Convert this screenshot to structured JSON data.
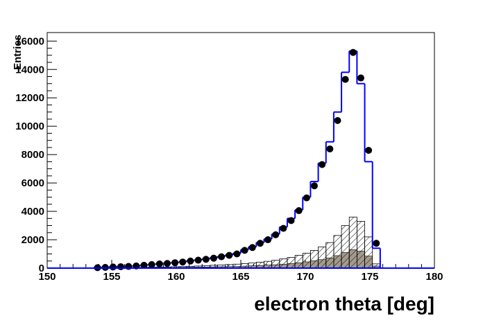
{
  "chart_data": {
    "type": "histogram",
    "x_label": "electron theta [deg]",
    "y_label": "Entries",
    "bins": [
      153.6,
      154.2,
      154.8,
      155.4,
      156.0,
      156.6,
      157.2,
      157.8,
      158.4,
      159.0,
      159.6,
      160.2,
      160.8,
      161.4,
      162.0,
      162.6,
      163.2,
      163.8,
      164.4,
      165.0,
      165.6,
      166.2,
      166.8,
      167.4,
      168.0,
      168.6,
      169.2,
      169.8,
      170.4,
      171.0,
      171.6,
      172.2,
      172.8,
      173.4,
      174.0,
      174.6,
      175.2,
      175.8
    ],
    "series": [
      {
        "style": "filled",
        "color": "#a39a8c",
        "values": [
          0,
          0,
          0,
          10,
          10,
          20,
          20,
          30,
          30,
          40,
          40,
          50,
          60,
          70,
          80,
          90,
          100,
          110,
          120,
          140,
          160,
          180,
          210,
          240,
          280,
          330,
          380,
          440,
          520,
          600,
          720,
          880,
          1100,
          1300,
          1200,
          850,
          150
        ]
      },
      {
        "style": "hatched",
        "color": "#000000",
        "values": [
          0,
          0,
          10,
          20,
          30,
          40,
          50,
          60,
          70,
          80,
          100,
          110,
          130,
          150,
          170,
          200,
          220,
          250,
          280,
          320,
          360,
          420,
          480,
          550,
          650,
          750,
          900,
          1050,
          1250,
          1500,
          1800,
          2300,
          3000,
          3600,
          3300,
          2200,
          300
        ]
      },
      {
        "style": "step",
        "color": "#0000ff",
        "values": [
          40,
          60,
          90,
          110,
          130,
          160,
          210,
          260,
          310,
          350,
          400,
          450,
          520,
          580,
          650,
          730,
          830,
          930,
          1050,
          1300,
          1500,
          1800,
          2050,
          2400,
          2900,
          3500,
          4100,
          5000,
          6100,
          7400,
          8900,
          11000,
          13800,
          15300,
          13000,
          7500,
          1400
        ]
      },
      {
        "style": "points",
        "color": "#000000",
        "values": [
          30,
          50,
          80,
          100,
          120,
          150,
          200,
          250,
          300,
          330,
          380,
          430,
          500,
          560,
          620,
          700,
          800,
          900,
          1000,
          1250,
          1450,
          1750,
          2000,
          2350,
          2800,
          3350,
          4050,
          4950,
          5800,
          7300,
          8400,
          10400,
          13300,
          15200,
          13400,
          8300,
          1750
        ]
      }
    ],
    "xlim": [
      150,
      180
    ],
    "xticks": [
      150,
      155,
      160,
      165,
      170,
      175,
      180
    ],
    "ylim": [
      0,
      16600
    ],
    "yticks": [
      0,
      2000,
      4000,
      6000,
      8000,
      10000,
      12000,
      14000,
      16000
    ]
  }
}
